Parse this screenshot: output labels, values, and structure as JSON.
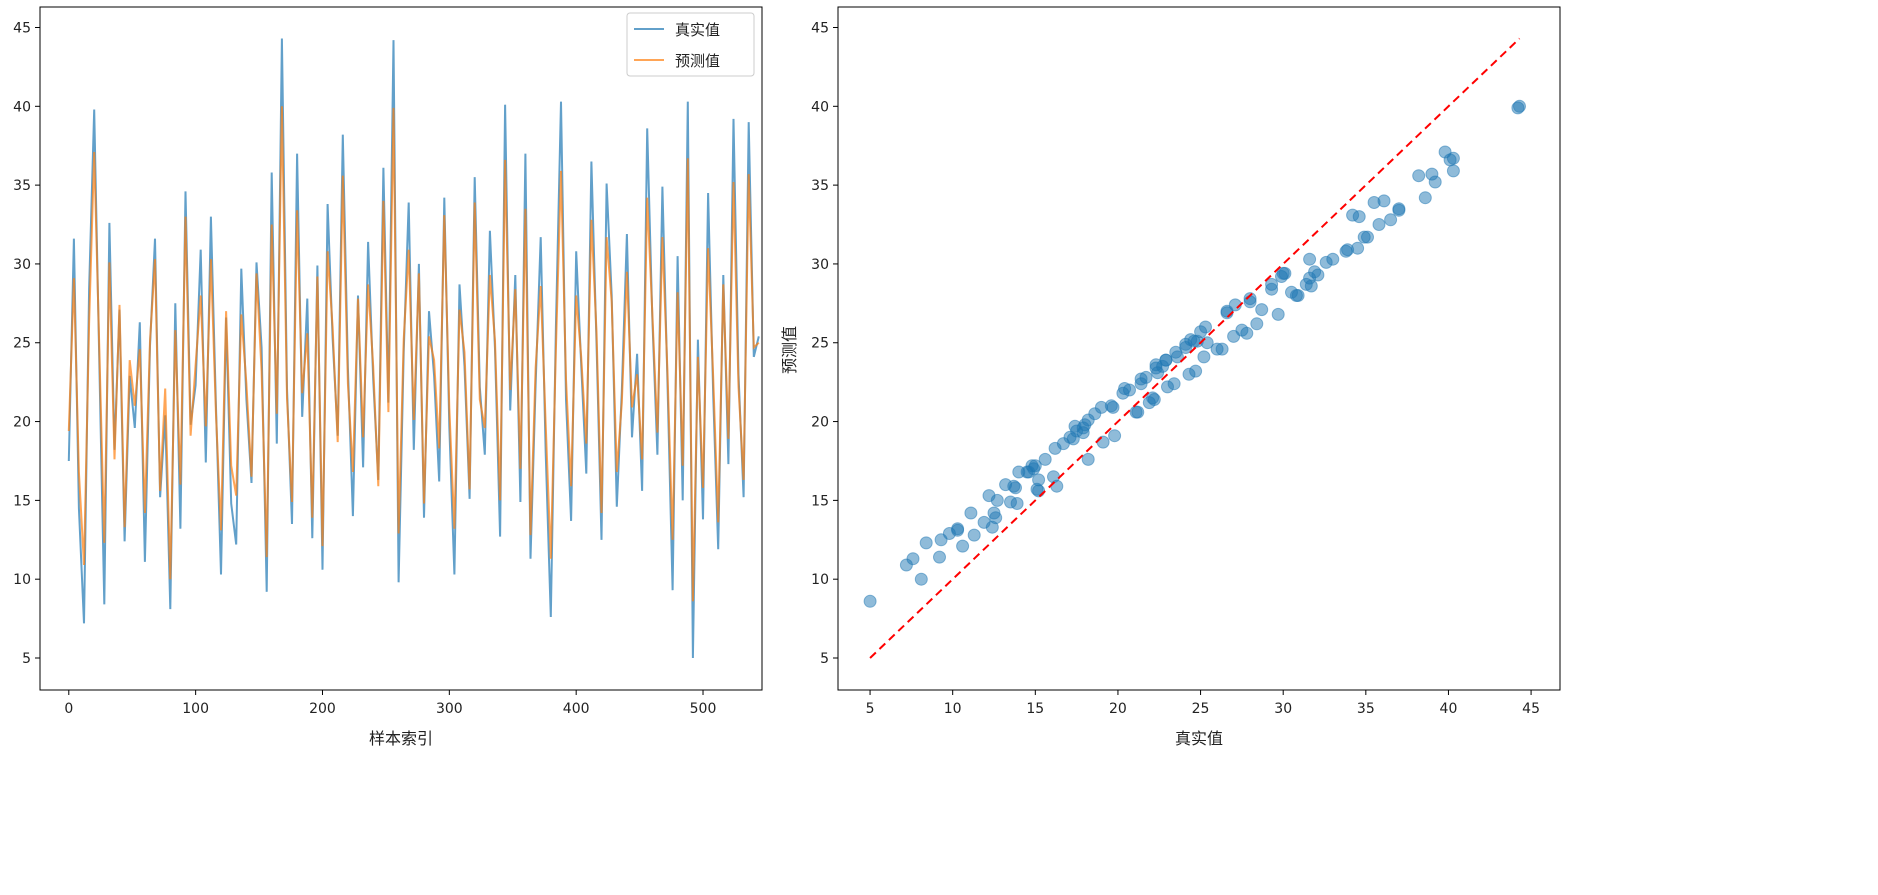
{
  "chart_data": [
    {
      "type": "line",
      "xlabel": "样本索引",
      "ylabel": "",
      "xlim": [
        -22.7,
        546.5
      ],
      "ylim": [
        2.97,
        46.3
      ],
      "xticks": [
        0,
        100,
        200,
        300,
        400,
        500
      ],
      "yticks": [
        5,
        10,
        15,
        20,
        25,
        30,
        35,
        40,
        45
      ],
      "legend_position": "top-right",
      "x_step": 4,
      "series": [
        {
          "name": "真实值",
          "color": "#1f77b4",
          "key": "true"
        },
        {
          "name": "预测值",
          "color": "#ff7f0e",
          "key": "pred"
        }
      ]
    },
    {
      "type": "scatter",
      "xlabel": "真实值",
      "ylabel": "预测值",
      "xlim": [
        3.06,
        46.75
      ],
      "ylim": [
        2.97,
        46.3
      ],
      "xticks": [
        5,
        10,
        15,
        20,
        25,
        30,
        35,
        40,
        45
      ],
      "yticks": [
        5,
        10,
        15,
        20,
        25,
        30,
        35,
        40,
        45
      ],
      "point_color": "#1f77b4",
      "reference_line": {
        "from": [
          5,
          5
        ],
        "to": [
          44.3,
          44.3
        ],
        "color": "#ff0000",
        "style": "dashed"
      }
    }
  ],
  "values": {
    "true": [
      17.5,
      31.6,
      14.5,
      7.2,
      28.4,
      39.8,
      24.1,
      8.4,
      32.6,
      18.2,
      27.1,
      12.4,
      22.9,
      19.6,
      26.3,
      11.1,
      24.8,
      31.6,
      15.2,
      20.4,
      8.1,
      27.5,
      13.2,
      34.6,
      19.8,
      22.3,
      30.9,
      17.4,
      33.0,
      21.1,
      10.3,
      26.6,
      14.8,
      12.2,
      29.7,
      21.4,
      16.1,
      30.1,
      24.7,
      9.2,
      35.8,
      18.6,
      44.3,
      22.1,
      13.5,
      37.0,
      20.3,
      27.8,
      12.6,
      29.9,
      10.6,
      33.8,
      25.3,
      19.1,
      38.2,
      23.4,
      14.0,
      28.0,
      17.1,
      31.4,
      22.7,
      16.3,
      36.1,
      21.2,
      44.2,
      9.8,
      24.4,
      33.9,
      18.2,
      30.0,
      13.9,
      27.0,
      22.9,
      16.2,
      34.2,
      19.7,
      10.3,
      28.7,
      23.5,
      15.1,
      35.5,
      22.2,
      17.9,
      32.1,
      24.6,
      12.7,
      40.1,
      20.7,
      29.3,
      14.9,
      37.0,
      11.3,
      22.3,
      31.7,
      18.0,
      7.6,
      26.0,
      40.3,
      21.4,
      13.7,
      30.8,
      23.6,
      16.7,
      36.5,
      25.0,
      12.5,
      35.1,
      28.0,
      14.6,
      21.9,
      31.9,
      19.0,
      24.3,
      15.6,
      38.6,
      26.6,
      17.9,
      34.9,
      22.4,
      9.3,
      30.5,
      15.0,
      40.3,
      5.0,
      25.2,
      13.8,
      34.5,
      21.7,
      11.9,
      29.3,
      17.3,
      39.2,
      23.0,
      15.2,
      39.0,
      24.1,
      25.4
    ],
    "pred": [
      19.4,
      29.1,
      16.8,
      10.9,
      26.2,
      37.1,
      24.9,
      12.3,
      30.1,
      17.6,
      27.4,
      13.3,
      23.9,
      21.0,
      24.6,
      14.2,
      25.1,
      30.3,
      15.6,
      22.1,
      10.0,
      25.8,
      16.0,
      33.0,
      19.1,
      23.6,
      28.0,
      19.7,
      30.3,
      20.6,
      13.1,
      27.0,
      17.2,
      15.3,
      26.8,
      22.4,
      16.5,
      29.4,
      23.2,
      11.4,
      32.5,
      20.5,
      40.0,
      21.5,
      14.9,
      33.4,
      21.8,
      25.6,
      13.9,
      29.2,
      12.1,
      30.8,
      26.0,
      18.7,
      35.6,
      22.4,
      16.8,
      27.8,
      19.0,
      28.7,
      23.5,
      15.9,
      34.0,
      20.6,
      39.9,
      12.9,
      25.2,
      30.9,
      20.1,
      29.4,
      14.8,
      25.4,
      23.9,
      18.3,
      33.1,
      20.9,
      13.2,
      27.1,
      24.4,
      15.7,
      33.9,
      21.4,
      19.6,
      29.3,
      25.1,
      15.0,
      36.6,
      22.0,
      28.4,
      17.0,
      33.5,
      12.8,
      23.4,
      28.6,
      19.8,
      11.3,
      24.6,
      35.9,
      22.7,
      15.9,
      28.0,
      24.1,
      18.6,
      32.8,
      25.7,
      14.2,
      31.7,
      27.6,
      16.8,
      21.2,
      29.5,
      20.9,
      23.0,
      17.6,
      34.2,
      26.9,
      19.3,
      31.7,
      23.1,
      12.5,
      28.2,
      17.2,
      36.7,
      8.6,
      24.1,
      15.8,
      31.0,
      22.8,
      13.6,
      28.7,
      18.9,
      35.2,
      22.2,
      16.3,
      35.7,
      24.7,
      25.0
    ]
  }
}
